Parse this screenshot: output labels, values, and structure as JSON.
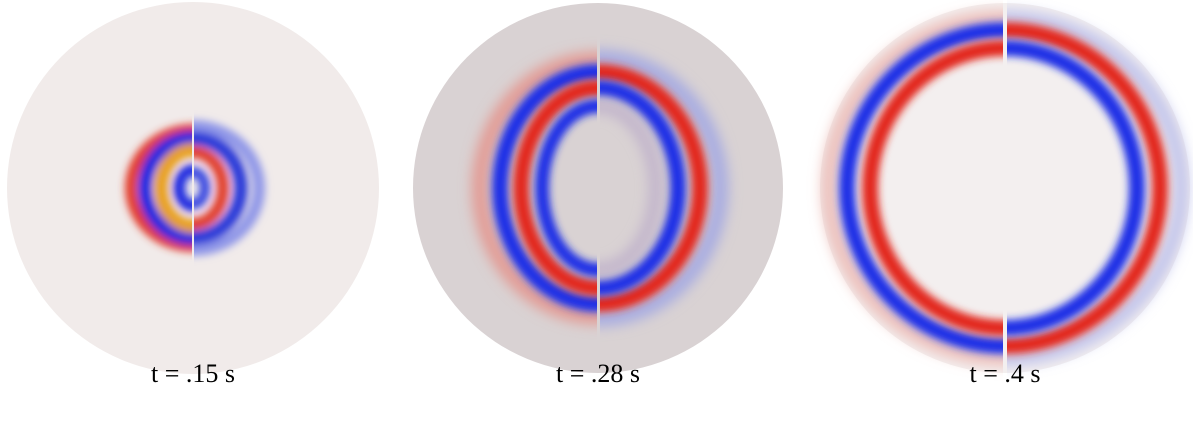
{
  "panels": [
    {
      "caption": "t = .15 s"
    },
    {
      "caption": "t = .28 s"
    },
    {
      "caption": "t = .4 s"
    }
  ]
}
